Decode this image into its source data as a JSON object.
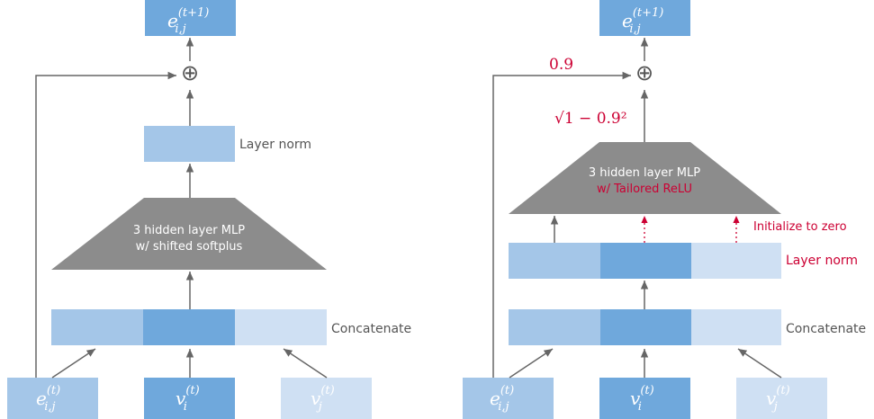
{
  "colors": {
    "box_light": "#a4c6e8",
    "box_mid": "#6fa8dc",
    "box_pale": "#cfe0f3",
    "trapezoid": "#8c8c8c",
    "arrow": "#666666",
    "label": "#555555",
    "accent_red": "#cc0033",
    "white": "#ffffff"
  },
  "left": {
    "output": {
      "base": "e",
      "sup": "(t+1)",
      "sub": "i,j"
    },
    "plus_symbol": "⊕",
    "layer_norm_label": "Layer norm",
    "mlp_line1": "3 hidden layer MLP",
    "mlp_line2": "w/ shifted softplus",
    "concat_label": "Concatenate",
    "inputs": [
      {
        "base": "e",
        "sup": "(t)",
        "sub": "i,j"
      },
      {
        "base": "v",
        "sup": "(t)",
        "sub": "i"
      },
      {
        "base": "v",
        "sup": "(t)",
        "sub": "j"
      }
    ]
  },
  "right": {
    "output": {
      "base": "e",
      "sup": "(t+1)",
      "sub": "i,j"
    },
    "plus_symbol": "⊕",
    "skip_weight": "0.9",
    "mlp_weight": "√1 − 0.9²",
    "mlp_line1": "3 hidden layer MLP",
    "mlp_line2": "w/ Tailored ReLU",
    "init_label": "Initialize to zero",
    "layer_norm_label": "Layer norm",
    "concat_label": "Concatenate",
    "inputs": [
      {
        "base": "e",
        "sup": "(t)",
        "sub": "i,j"
      },
      {
        "base": "v",
        "sup": "(t)",
        "sub": "i"
      },
      {
        "base": "v",
        "sup": "(t)",
        "sub": "j"
      }
    ]
  }
}
